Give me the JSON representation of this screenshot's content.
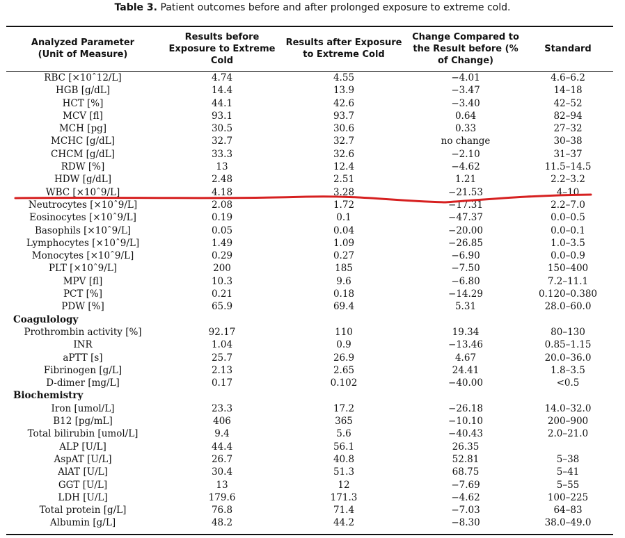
{
  "caption": {
    "label": "Table 3.",
    "text": "Patient outcomes before and after prolonged exposure to extreme cold."
  },
  "headers": [
    "Analyzed Parameter\n(Unit of Measure)",
    "Results before\nExposure to Extreme\nCold",
    "Results after Exposure\nto Extreme Cold",
    "Change Compared to\nthe Result before (%\nof Change)",
    "Standard"
  ],
  "rows": [
    {
      "p": "RBC [×10ˆ12/L]",
      "b": "4.74",
      "a": "4.55",
      "c": "−4.01",
      "s": "4.6–6.2"
    },
    {
      "p": "HGB [g/dL]",
      "b": "14.4",
      "a": "13.9",
      "c": "−3.47",
      "s": "14–18"
    },
    {
      "p": "HCT [%]",
      "b": "44.1",
      "a": "42.6",
      "c": "−3.40",
      "s": "42–52"
    },
    {
      "p": "MCV [fl]",
      "b": "93.1",
      "a": "93.7",
      "c": "0.64",
      "s": "82–94"
    },
    {
      "p": "MCH [pg]",
      "b": "30.5",
      "a": "30.6",
      "c": "0.33",
      "s": "27–32"
    },
    {
      "p": "MCHC [g/dL]",
      "b": "32.7",
      "a": "32.7",
      "c": "no change",
      "s": "30–38"
    },
    {
      "p": "CHCM [g/dL]",
      "b": "33.3",
      "a": "32.6",
      "c": "−2.10",
      "s": "31–37"
    },
    {
      "p": "RDW [%]",
      "b": "13",
      "a": "12.4",
      "c": "−4.62",
      "s": "11.5–14.5"
    },
    {
      "p": "HDW [g/dL]",
      "b": "2.48",
      "a": "2.51",
      "c": "1.21",
      "s": "2.2–3.2"
    },
    {
      "p": "WBC [×10ˆ9/L]",
      "b": "4.18",
      "a": "3.28",
      "c": "−21.53",
      "s": "4–10"
    },
    {
      "p": "Neutrocytes [×10ˆ9/L]",
      "b": "2.08",
      "a": "1.72",
      "c": "−17.31",
      "s": "2.2–7.0"
    },
    {
      "p": "Eosinocytes [×10ˆ9/L]",
      "b": "0.19",
      "a": "0.1",
      "c": "−47.37",
      "s": "0.0–0.5"
    },
    {
      "p": "Basophils [×10ˆ9/L]",
      "b": "0.05",
      "a": "0.04",
      "c": "−20.00",
      "s": "0.0–0.1"
    },
    {
      "p": "Lymphocytes [×10ˆ9/L]",
      "b": "1.49",
      "a": "1.09",
      "c": "−26.85",
      "s": "1.0–3.5"
    },
    {
      "p": "Monocytes [×10ˆ9/L]",
      "b": "0.29",
      "a": "0.27",
      "c": "−6.90",
      "s": "0.0–0.9"
    },
    {
      "p": "PLT [×10ˆ9/L]",
      "b": "200",
      "a": "185",
      "c": "−7.50",
      "s": "150–400"
    },
    {
      "p": "MPV [fl]",
      "b": "10.3",
      "a": "9.6",
      "c": "−6.80",
      "s": "7.2–11.1"
    },
    {
      "p": "PCT [%]",
      "b": "0.21",
      "a": "0.18",
      "c": "−14.29",
      "s": "0.120–0.380"
    },
    {
      "p": "PDW [%]",
      "b": "65.9",
      "a": "69.4",
      "c": "5.31",
      "s": "28.0–60.0"
    },
    {
      "section": "Coagulology"
    },
    {
      "p": "Prothrombin activity [%]",
      "b": "92.17",
      "a": "110",
      "c": "19.34",
      "s": "80–130"
    },
    {
      "p": "INR",
      "b": "1.04",
      "a": "0.9",
      "c": "−13.46",
      "s": "0.85–1.15"
    },
    {
      "p": "aPTT [s]",
      "b": "25.7",
      "a": "26.9",
      "c": "4.67",
      "s": "20.0–36.0"
    },
    {
      "p": "Fibrinogen [g/L]",
      "b": "2.13",
      "a": "2.65",
      "c": "24.41",
      "s": "1.8–3.5"
    },
    {
      "p": "D-dimer [mg/L]",
      "b": "0.17",
      "a": "0.102",
      "c": "−40.00",
      "s": "<0.5"
    },
    {
      "section": "Biochemistry"
    },
    {
      "p": "Iron [umol/L]",
      "b": "23.3",
      "a": "17.2",
      "c": "−26.18",
      "s": "14.0–32.0"
    },
    {
      "p": "B12 [pg/mL]",
      "b": "406",
      "a": "365",
      "c": "−10.10",
      "s": "200–900"
    },
    {
      "p": "Total bilirubin [umol/L]",
      "b": "9.4",
      "a": "5.6",
      "c": "−40.43",
      "s": "2.0–21.0"
    },
    {
      "p": "ALP [U/L]",
      "b": "44.4",
      "a": "56.1",
      "c": "26.35",
      "s": ""
    },
    {
      "p": "AspAT [U/L]",
      "b": "26.7",
      "a": "40.8",
      "c": "52.81",
      "s": "5–38"
    },
    {
      "p": "AlAT [U/L]",
      "b": "30.4",
      "a": "51.3",
      "c": "68.75",
      "s": "5–41"
    },
    {
      "p": "GGT [U/L]",
      "b": "13",
      "a": "12",
      "c": "−7.69",
      "s": "5–55"
    },
    {
      "p": "LDH [U/L]",
      "b": "179.6",
      "a": "171.3",
      "c": "−4.62",
      "s": "100–225"
    },
    {
      "p": "Total protein [g/L]",
      "b": "76.8",
      "a": "71.4",
      "c": "−7.03",
      "s": "64–83"
    },
    {
      "p": "Albumin [g/L]",
      "b": "48.2",
      "a": "44.2",
      "c": "−8.30",
      "s": "38.0–49.0"
    }
  ],
  "annotation": {
    "color": "#d62020",
    "marked_row": "WBC [×10ˆ9/L]"
  }
}
